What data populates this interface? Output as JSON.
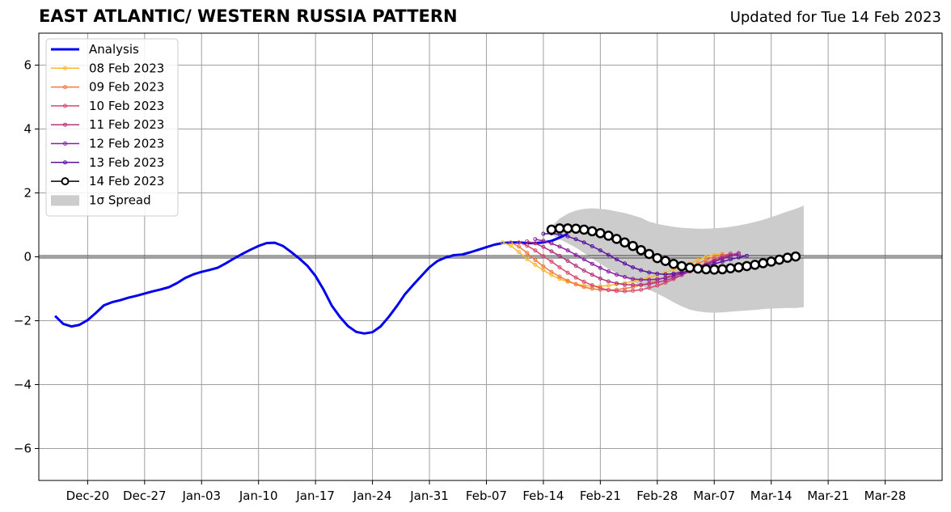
{
  "chart_data": {
    "type": "line",
    "title": "EAST ATLANTIC/ WESTERN RUSSIA PATTERN",
    "subtitle": "Updated for Tue 14 Feb 2023",
    "xlabel": "",
    "ylabel": "",
    "xlim": [
      "2022-12-14",
      "2023-04-04"
    ],
    "ylim": [
      -7,
      7
    ],
    "yticks": [
      -6,
      -4,
      -2,
      0,
      2,
      4,
      6
    ],
    "ytick_labels": [
      "−6",
      "−4",
      "−2",
      "0",
      "2",
      "4",
      "6"
    ],
    "xticks": [
      "2022-12-20",
      "2022-12-27",
      "2023-01-03",
      "2023-01-10",
      "2023-01-17",
      "2023-01-24",
      "2023-01-31",
      "2023-02-07",
      "2023-02-14",
      "2023-02-21",
      "2023-02-28",
      "2023-03-07",
      "2023-03-14",
      "2023-03-21",
      "2023-03-28"
    ],
    "xtick_labels": [
      "Dec-20",
      "Dec-27",
      "Jan-03",
      "Jan-10",
      "Jan-17",
      "Jan-24",
      "Jan-31",
      "Feb-07",
      "Feb-14",
      "Feb-21",
      "Feb-28",
      "Mar-07",
      "Mar-14",
      "Mar-21",
      "Mar-28"
    ],
    "grid": true,
    "legend_position": "top-left",
    "zero_line": true,
    "analysis": {
      "name": "Analysis",
      "color": "#0000ee",
      "start_date": "2022-12-16",
      "values": [
        -1.85,
        -2.1,
        -2.18,
        -2.13,
        -1.98,
        -1.76,
        -1.52,
        -1.42,
        -1.36,
        -1.28,
        -1.22,
        -1.15,
        -1.08,
        -1.02,
        -0.95,
        -0.82,
        -0.66,
        -0.55,
        -0.47,
        -0.41,
        -0.34,
        -0.2,
        -0.05,
        0.09,
        0.22,
        0.34,
        0.43,
        0.44,
        0.34,
        0.15,
        -0.05,
        -0.28,
        -0.6,
        -1.03,
        -1.53,
        -1.88,
        -2.17,
        -2.35,
        -2.4,
        -2.36,
        -2.18,
        -1.88,
        -1.54,
        -1.17,
        -0.88,
        -0.6,
        -0.33,
        -0.13,
        -0.02,
        0.05,
        0.07,
        0.14,
        0.22,
        0.3,
        0.38,
        0.43,
        0.45,
        0.45,
        0.43,
        0.43,
        0.45,
        0.5,
        0.6,
        0.72
      ]
    },
    "forecasts": [
      {
        "name": "08 Feb 2023",
        "color": "#f8b92e",
        "start_date": "2023-02-09",
        "values": [
          0.45,
          0.35,
          0.15,
          -0.07,
          -0.25,
          -0.42,
          -0.57,
          -0.69,
          -0.78,
          -0.85,
          -0.9,
          -0.92,
          -0.92,
          -0.9,
          -0.86,
          -0.82,
          -0.77,
          -0.71,
          -0.64,
          -0.57,
          -0.49,
          -0.4,
          -0.3,
          -0.2,
          -0.1,
          0.0,
          0.06,
          0.1
        ]
      },
      {
        "name": "09 Feb 2023",
        "color": "#f1793e",
        "start_date": "2023-02-10",
        "values": [
          0.45,
          0.32,
          0.12,
          -0.1,
          -0.3,
          -0.47,
          -0.62,
          -0.75,
          -0.86,
          -0.95,
          -1.0,
          -1.03,
          -1.04,
          -1.03,
          -0.99,
          -0.95,
          -0.89,
          -0.82,
          -0.74,
          -0.64,
          -0.54,
          -0.43,
          -0.32,
          -0.21,
          -0.1,
          0.0,
          0.07
        ]
      },
      {
        "name": "10 Feb 2023",
        "color": "#d8486b",
        "start_date": "2023-02-11",
        "values": [
          0.45,
          0.35,
          0.2,
          0.02,
          -0.15,
          -0.33,
          -0.5,
          -0.65,
          -0.78,
          -0.89,
          -0.98,
          -1.04,
          -1.07,
          -1.08,
          -1.06,
          -1.03,
          -0.97,
          -0.9,
          -0.81,
          -0.7,
          -0.57,
          -0.44,
          -0.32,
          -0.2,
          -0.08,
          0.03,
          0.1
        ]
      },
      {
        "name": "11 Feb 2023",
        "color": "#b2357d",
        "start_date": "2023-02-12",
        "values": [
          0.48,
          0.42,
          0.31,
          0.17,
          0.03,
          -0.13,
          -0.28,
          -0.43,
          -0.56,
          -0.68,
          -0.77,
          -0.83,
          -0.87,
          -0.88,
          -0.88,
          -0.85,
          -0.8,
          -0.74,
          -0.66,
          -0.57,
          -0.46,
          -0.35,
          -0.24,
          -0.13,
          -0.03,
          0.06,
          0.12
        ]
      },
      {
        "name": "12 Feb 2023",
        "color": "#8a1fa0",
        "start_date": "2023-02-13",
        "values": [
          0.55,
          0.5,
          0.42,
          0.32,
          0.2,
          0.06,
          -0.08,
          -0.22,
          -0.35,
          -0.46,
          -0.56,
          -0.63,
          -0.69,
          -0.72,
          -0.72,
          -0.7,
          -0.66,
          -0.6,
          -0.52,
          -0.43,
          -0.34,
          -0.25,
          -0.15,
          -0.06,
          0.02,
          0.08
        ]
      },
      {
        "name": "13 Feb 2023",
        "color": "#5a12a2",
        "start_date": "2023-02-14",
        "values": [
          0.72,
          0.73,
          0.7,
          0.64,
          0.55,
          0.45,
          0.33,
          0.2,
          0.06,
          -0.08,
          -0.21,
          -0.33,
          -0.42,
          -0.49,
          -0.53,
          -0.55,
          -0.53,
          -0.49,
          -0.43,
          -0.36,
          -0.29,
          -0.22,
          -0.15,
          -0.08,
          -0.02,
          0.03
        ]
      },
      {
        "name": "14 Feb 2023",
        "color": "#000000",
        "start_date": "2023-02-15",
        "values": [
          0.85,
          0.89,
          0.89,
          0.88,
          0.85,
          0.8,
          0.74,
          0.66,
          0.56,
          0.45,
          0.34,
          0.21,
          0.09,
          -0.04,
          -0.13,
          -0.22,
          -0.29,
          -0.34,
          -0.37,
          -0.39,
          -0.4,
          -0.39,
          -0.36,
          -0.33,
          -0.29,
          -0.25,
          -0.2,
          -0.15,
          -0.09,
          -0.03,
          0.01
        ]
      }
    ],
    "spread": {
      "name": "1σ Spread",
      "color": "#cccccc",
      "start_date": "2023-02-15",
      "upper": [
        0.95,
        1.2,
        1.35,
        1.45,
        1.5,
        1.52,
        1.5,
        1.47,
        1.42,
        1.37,
        1.3,
        1.22,
        1.1,
        1.03,
        0.98,
        0.94,
        0.91,
        0.89,
        0.88,
        0.88,
        0.89,
        0.91,
        0.94,
        0.98,
        1.03,
        1.09,
        1.16,
        1.24,
        1.33,
        1.42,
        1.5,
        1.6
      ],
      "lower": [
        0.7,
        0.55,
        0.42,
        0.28,
        0.12,
        -0.05,
        -0.22,
        -0.38,
        -0.52,
        -0.65,
        -0.78,
        -0.9,
        -1.03,
        -1.15,
        -1.28,
        -1.42,
        -1.55,
        -1.65,
        -1.71,
        -1.74,
        -1.75,
        -1.74,
        -1.72,
        -1.7,
        -1.68,
        -1.66,
        -1.64,
        -1.62,
        -1.61,
        -1.6,
        -1.6,
        -1.58
      ]
    }
  }
}
